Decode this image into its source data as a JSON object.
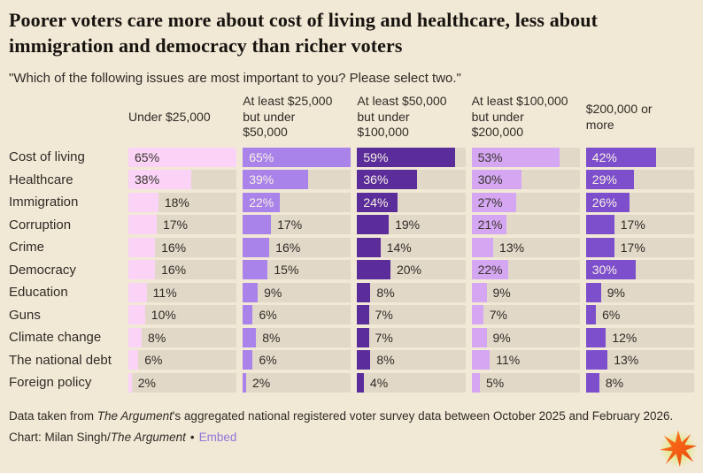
{
  "title": "Poorer voters care more about cost of living and healthcare, less about immigration and democracy than richer voters",
  "subtitle": "\"Which of the following issues are most important to you? Please select two.\"",
  "chart_data": {
    "type": "bar",
    "orientation": "horizontal",
    "unit": "%",
    "xlim": [
      0,
      65
    ],
    "grid": false,
    "legend_position": "column-headers",
    "label_inside_min_value": 21,
    "categories": [
      "Cost of living",
      "Healthcare",
      "Immigration",
      "Corruption",
      "Crime",
      "Democracy",
      "Education",
      "Guns",
      "Climate change",
      "The national debt",
      "Foreign policy"
    ],
    "series": [
      {
        "name": "Under $25,000",
        "header": "Under $25,000",
        "color": "#FBD3F7",
        "text_in_bar": "dark",
        "values": [
          65,
          38,
          18,
          17,
          16,
          16,
          11,
          10,
          8,
          6,
          2
        ]
      },
      {
        "name": "At least $25,000 but under $50,000",
        "header": "At least $25,000\nbut under\n$50,000",
        "color": "#A982EA",
        "text_in_bar": "light",
        "values": [
          65,
          39,
          22,
          17,
          16,
          15,
          9,
          6,
          8,
          6,
          2
        ]
      },
      {
        "name": "At least $50,000 but under $100,000",
        "header": "At least $50,000\nbut under\n$100,000",
        "color": "#5B2D9B",
        "text_in_bar": "light",
        "values": [
          59,
          36,
          24,
          19,
          14,
          20,
          8,
          7,
          7,
          8,
          4
        ]
      },
      {
        "name": "At least $100,000 but under $200,000",
        "header": "At least $100,000\nbut under\n$200,000",
        "color": "#D5A7F2",
        "text_in_bar": "dark",
        "values": [
          53,
          30,
          27,
          21,
          13,
          22,
          9,
          7,
          9,
          11,
          5
        ]
      },
      {
        "name": "$200,000 or more",
        "header": "$200,000 or\nmore",
        "color": "#7E4FCC",
        "text_in_bar": "light",
        "values": [
          42,
          29,
          26,
          17,
          17,
          30,
          9,
          6,
          12,
          13,
          8
        ]
      }
    ]
  },
  "footer": {
    "source_prefix": "Data taken from ",
    "source_publication": "The Argument",
    "source_suffix": "'s aggregated national registered voter survey data between October 2025 and February 2026.",
    "credit_prefix": "Chart: Milan Singh/",
    "credit_publication": "The Argument",
    "separator": "•",
    "embed_label": "Embed"
  },
  "colors": {
    "background": "#F2E8D6",
    "bar_track": "#E2D8C8",
    "title_text": "#17140F",
    "body_text": "#2F2B25",
    "bar_label_dark": "#3A352E",
    "bar_label_light": "#F8F1E4",
    "embed_link": "#9476D9",
    "logo_orange": "#F0520F",
    "logo_glow": "#DDE96F"
  }
}
